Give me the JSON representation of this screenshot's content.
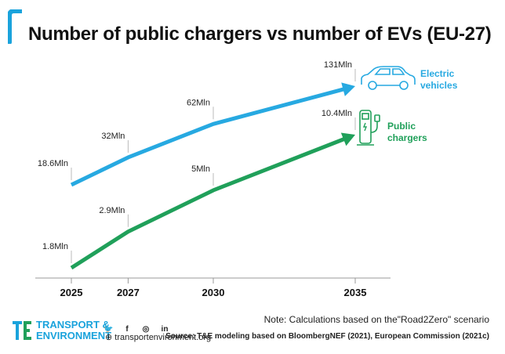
{
  "header": {
    "title": "Number of public chargers vs number of EVs (EU-27)"
  },
  "chart_data": {
    "type": "line",
    "categories": [
      "2025",
      "2027",
      "2030",
      "2035"
    ],
    "series": [
      {
        "name": "Electric vehicles",
        "color": "#27a9e1",
        "values": [
          18.6,
          32,
          62,
          131
        ],
        "labels": [
          "18.6Mln",
          "32Mln",
          "62Mln",
          "131Mln"
        ],
        "icon": "car-icon"
      },
      {
        "name": "Public chargers",
        "color": "#20a05a",
        "values": [
          1.8,
          2.9,
          5,
          10.4
        ],
        "labels": [
          "1.8Mln",
          "2.9Mln",
          "5Mln",
          "10.4Mln"
        ],
        "icon": "charger-icon"
      }
    ],
    "series_label_lines": [
      [
        "Electric",
        "vehicles"
      ],
      [
        "Public",
        "chargers"
      ]
    ]
  },
  "footer": {
    "note": "Note: Calculations based on the\"Road2Zero\" scenario",
    "source": "Source: T&E modeling based on BloombergNEF (2021), European Commission (2021c)",
    "logo_line1": "TRANSPORT &",
    "logo_line2": "ENVIRONMENT",
    "website": "transportenvironment.org",
    "social_icons": [
      "twitter-icon",
      "facebook-icon",
      "instagram-icon",
      "linkedin-icon"
    ],
    "brand_color": "#1aa3dc"
  }
}
